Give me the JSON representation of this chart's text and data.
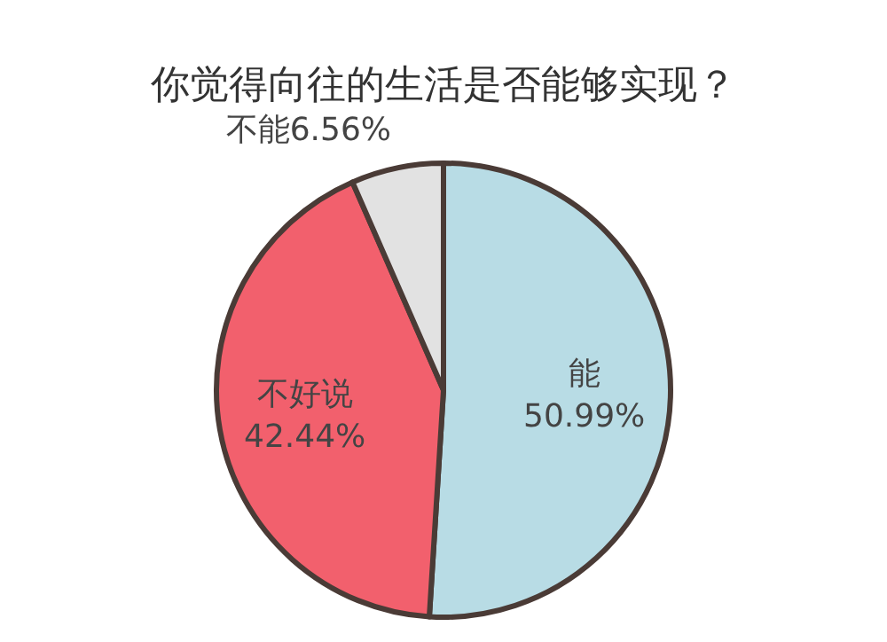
{
  "chart_data": {
    "type": "pie",
    "title": "你觉得向往的生活是否能够实现？",
    "categories": [
      "能",
      "不好说",
      "不能"
    ],
    "values": [
      50.99,
      42.44,
      6.56
    ],
    "value_labels": [
      "50.99%",
      "42.44%",
      "6.56%"
    ],
    "colors": [
      "#b8dce5",
      "#f2606d",
      "#e2e2e2"
    ]
  }
}
